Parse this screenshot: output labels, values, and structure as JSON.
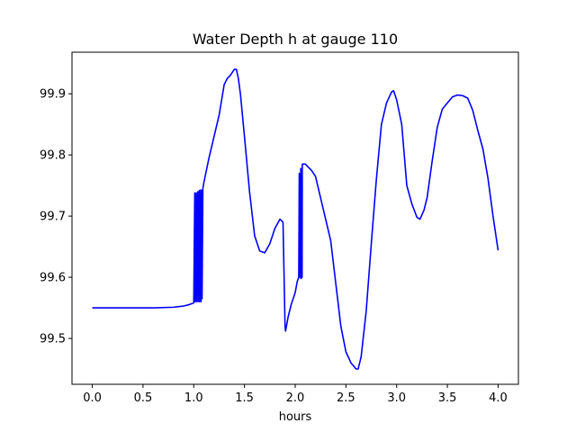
{
  "chart_data": {
    "type": "line",
    "title": "Water Depth h at gauge 110",
    "xlabel": "hours",
    "ylabel": "",
    "xlim": [
      -0.2,
      4.2
    ],
    "ylim": [
      99.425,
      99.968
    ],
    "xticks": [
      0.0,
      0.5,
      1.0,
      1.5,
      2.0,
      2.5,
      3.0,
      3.5,
      4.0
    ],
    "xtick_labels": [
      "0.0",
      "0.5",
      "1.0",
      "1.5",
      "2.0",
      "2.5",
      "3.0",
      "3.5",
      "4.0"
    ],
    "yticks": [
      99.5,
      99.6,
      99.7,
      99.8,
      99.9
    ],
    "ytick_labels": [
      "99.5",
      "99.6",
      "99.7",
      "99.8",
      "99.9"
    ],
    "grid": false,
    "series": [
      {
        "color": "#0000ff",
        "x": [
          0.0,
          0.3,
          0.6,
          0.8,
          0.9,
          0.95,
          1.0,
          1.01,
          1.012,
          1.025,
          1.027,
          1.04,
          1.042,
          1.055,
          1.057,
          1.07,
          1.072,
          1.08,
          1.082,
          1.09,
          1.095,
          1.1,
          1.15,
          1.2,
          1.25,
          1.3,
          1.33,
          1.36,
          1.38,
          1.4,
          1.42,
          1.44,
          1.46,
          1.5,
          1.55,
          1.6,
          1.65,
          1.7,
          1.75,
          1.8,
          1.85,
          1.88,
          1.9,
          1.905,
          1.93,
          1.96,
          2.0,
          2.02,
          2.035,
          2.04,
          2.042,
          2.055,
          2.057,
          2.068,
          2.07,
          2.075,
          2.1,
          2.13,
          2.16,
          2.2,
          2.25,
          2.3,
          2.35,
          2.4,
          2.45,
          2.5,
          2.55,
          2.6,
          2.62,
          2.65,
          2.7,
          2.75,
          2.8,
          2.85,
          2.9,
          2.95,
          2.97,
          3.0,
          3.05,
          3.1,
          3.15,
          3.2,
          3.23,
          3.27,
          3.3,
          3.35,
          3.4,
          3.45,
          3.5,
          3.55,
          3.6,
          3.65,
          3.7,
          3.75,
          3.8,
          3.85,
          3.9,
          3.95,
          4.0
        ],
        "values": [
          99.55,
          99.55,
          99.55,
          99.551,
          99.553,
          99.555,
          99.558,
          99.738,
          99.56,
          99.738,
          99.56,
          99.74,
          99.56,
          99.742,
          99.56,
          99.743,
          99.56,
          99.742,
          99.565,
          99.745,
          99.75,
          99.755,
          99.795,
          99.83,
          99.865,
          99.915,
          99.925,
          99.93,
          99.935,
          99.94,
          99.94,
          99.925,
          99.9,
          99.83,
          99.74,
          99.668,
          99.643,
          99.64,
          99.655,
          99.68,
          99.695,
          99.69,
          99.52,
          99.512,
          99.535,
          99.555,
          99.575,
          99.593,
          99.6,
          99.77,
          99.6,
          99.778,
          99.598,
          99.6,
          99.785,
          99.785,
          99.785,
          99.78,
          99.775,
          99.765,
          99.73,
          99.695,
          99.66,
          99.59,
          99.52,
          99.478,
          99.46,
          99.45,
          99.45,
          99.47,
          99.545,
          99.655,
          99.76,
          99.85,
          99.885,
          99.903,
          99.905,
          99.89,
          99.85,
          99.75,
          99.72,
          99.698,
          99.695,
          99.71,
          99.73,
          99.79,
          99.845,
          99.875,
          99.885,
          99.895,
          99.898,
          99.897,
          99.893,
          99.873,
          99.84,
          99.81,
          99.762,
          99.7,
          99.644
        ]
      }
    ]
  }
}
